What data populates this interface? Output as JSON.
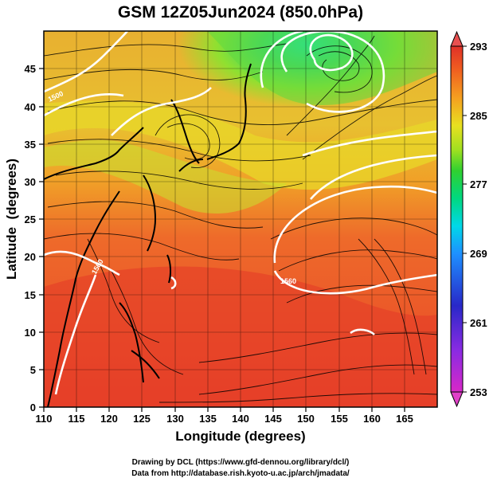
{
  "title": "GSM 12Z05Jun2024 (850.0hPa)",
  "x_axis": {
    "label": "Longitude (degrees)",
    "min": 110,
    "max": 170,
    "ticks": [
      "110",
      "115",
      "120",
      "125",
      "130",
      "135",
      "140",
      "145",
      "150",
      "155",
      "160",
      "165"
    ]
  },
  "y_axis": {
    "label": "Latitude  (degrees)",
    "min": 0,
    "max": 50,
    "ticks": [
      "0",
      "5",
      "10",
      "15",
      "20",
      "25",
      "30",
      "35",
      "40",
      "45"
    ]
  },
  "colorbar": {
    "min": 253,
    "max": 293,
    "tick_labels": [
      "293",
      "285",
      "277",
      "269",
      "261",
      "253"
    ],
    "tick_values": [
      293,
      285,
      277,
      269,
      261,
      253
    ],
    "colors": [
      "#e040c8",
      "#8a2be2",
      "#2020c0",
      "#1e90ff",
      "#00d0ff",
      "#00e0a0",
      "#2fd02f",
      "#8fe020",
      "#e0e020",
      "#f5b020",
      "#f07020",
      "#e03020"
    ]
  },
  "map": {
    "field": "temperature shading, geopotential height contours, wind streamlines",
    "contour_color": "#ffffff",
    "contour_labels": [
      "1560",
      "1500"
    ]
  },
  "credits": {
    "line1": "Drawing by DCL (https://www.gfd-dennou.org/library/dcl/)",
    "line2": "Data from http://database.rish.kyoto-u.ac.jp/arch/jmadata/"
  }
}
